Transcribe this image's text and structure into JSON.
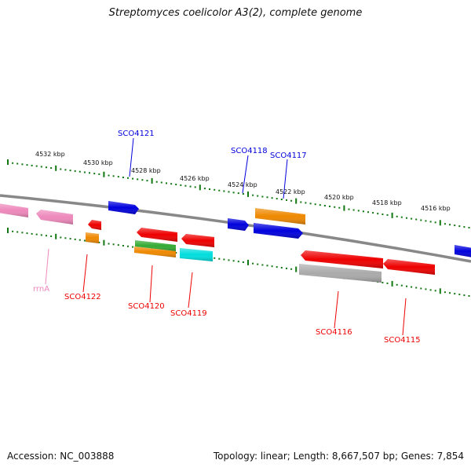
{
  "title": "Streptomyces coelicolor A3(2), complete genome",
  "footer": {
    "accession": "Accession: NC_003888",
    "topology": "Topology: linear; Length: 8,667,507 bp; Genes: 7,854"
  },
  "scale_labels": [
    "4532 kbp",
    "4530 kbp",
    "4528 kbp",
    "4526 kbp",
    "4524 kbp",
    "4522 kbp",
    "4520 kbp",
    "4518 kbp",
    "4516 kbp"
  ],
  "gene_labels": {
    "sco4121": "SCO4121",
    "sco4118": "SCO4118",
    "sco4117": "SCO4117",
    "sco4122": "SCO4122",
    "sco4120": "SCO4120",
    "sco4119": "SCO4119",
    "sco4116": "SCO4116",
    "sco4115": "SCO4115",
    "rrna": "rrnA"
  },
  "colors": {
    "blue": "#0000dd",
    "red": "#ee0000",
    "orange": "#ee8800",
    "green": "#33aa33",
    "cyan": "#00dddd",
    "pink": "#ee88bb",
    "gray": "#aaaaaa",
    "tick": "#117711",
    "backbone": "#888888"
  }
}
